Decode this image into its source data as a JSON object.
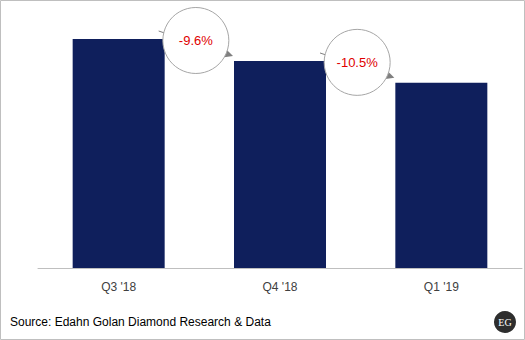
{
  "chart_data": {
    "type": "bar",
    "categories": [
      "Q3 '18",
      "Q4 '18",
      "Q1 '19"
    ],
    "values": [
      100,
      90.4,
      80.9
    ],
    "color": "#0f1f5c",
    "ylim": [
      0,
      100
    ],
    "grid": false,
    "tick_labels": "x",
    "annotations": [
      "-9.6%",
      "-10.5%"
    ],
    "source": "Source: Edahn Golan Diamond Research & Data",
    "logo": "EG"
  }
}
